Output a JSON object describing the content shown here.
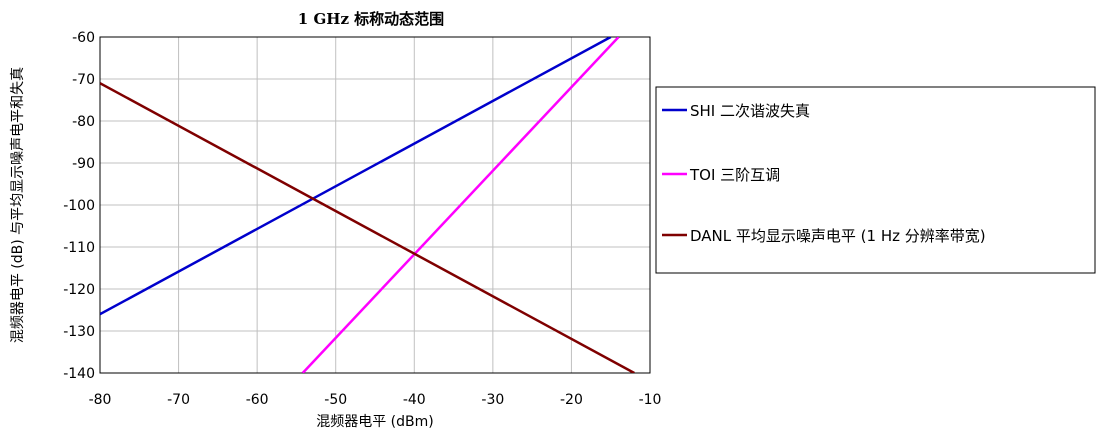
{
  "chart_data": {
    "type": "line",
    "title": "1 GHz 标称动态范围",
    "xlabel": "混频器电平 (dBm)",
    "ylabel": "混频器电平 (dB) 与平均显示噪声电平和失真",
    "xlim": [
      -80,
      -10
    ],
    "ylim": [
      -140,
      -60
    ],
    "x_ticks": [
      "-80",
      "-70",
      "-60",
      "-50",
      "-40",
      "-30",
      "-20",
      "-10"
    ],
    "y_ticks": [
      "-60",
      "-70",
      "-80",
      "-90",
      "-100",
      "-110",
      "-120",
      "-130",
      "-140"
    ],
    "grid": true,
    "legend_position": "right",
    "series": [
      {
        "name": "SHI 二次谐波失真",
        "color": "#0000cc",
        "x": [
          -80,
          -15
        ],
        "y": [
          -126,
          -60
        ]
      },
      {
        "name": "TOI 三阶互调",
        "color": "#ff00ff",
        "x": [
          -54.2,
          -14
        ],
        "y": [
          -140,
          -60
        ]
      },
      {
        "name": "DANL 平均显示噪声电平 (1 Hz 分辨率带宽)",
        "color": "#7f0000",
        "x": [
          -80,
          -12
        ],
        "y": [
          -71,
          -140
        ]
      }
    ]
  }
}
